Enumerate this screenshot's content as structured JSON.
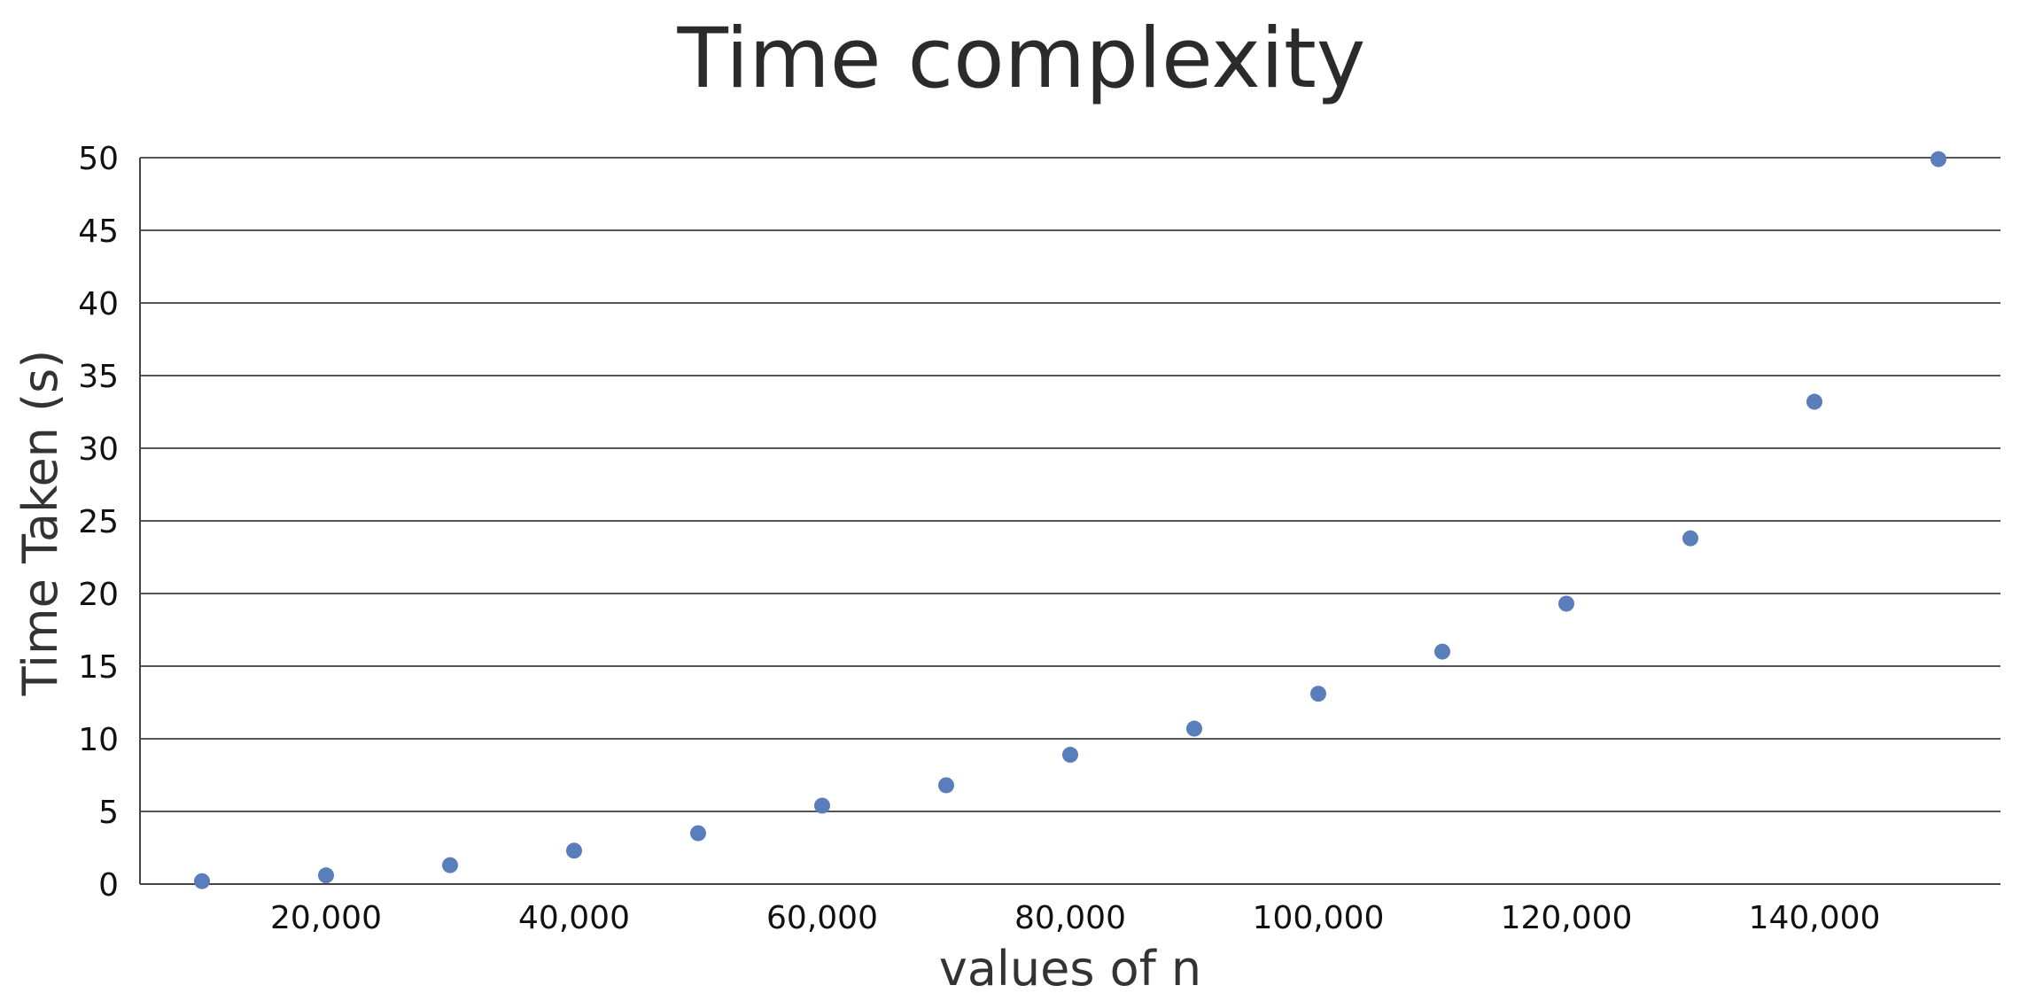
{
  "chart_data": {
    "type": "scatter",
    "title": "Time complexity",
    "xlabel": "values of n",
    "ylabel": "Time Taken (s)",
    "xlim": [
      5000,
      155000
    ],
    "ylim": [
      0,
      50
    ],
    "xticks": [
      20000,
      40000,
      60000,
      80000,
      100000,
      120000,
      140000
    ],
    "xtick_labels": [
      "20,000",
      "40,000",
      "60,000",
      "80,000",
      "100,000",
      "120,000",
      "140,000"
    ],
    "yticks": [
      0,
      5,
      10,
      15,
      20,
      25,
      30,
      35,
      40,
      45,
      50
    ],
    "ytick_labels": [
      "0",
      "5",
      "10",
      "15",
      "20",
      "25",
      "30",
      "35",
      "40",
      "45",
      "50"
    ],
    "grid": true,
    "point_color": "#5a7dbb",
    "series": [
      {
        "x": [
          10000,
          20000,
          30000,
          40000,
          50000,
          60000,
          70000,
          80000,
          90000,
          100000,
          110000,
          120000,
          130000,
          140000,
          150000
        ],
        "y": [
          0.2,
          0.6,
          1.3,
          2.3,
          3.5,
          5.4,
          6.8,
          8.9,
          10.7,
          13.1,
          16.0,
          19.3,
          23.8,
          33.2,
          49.9
        ]
      }
    ]
  }
}
